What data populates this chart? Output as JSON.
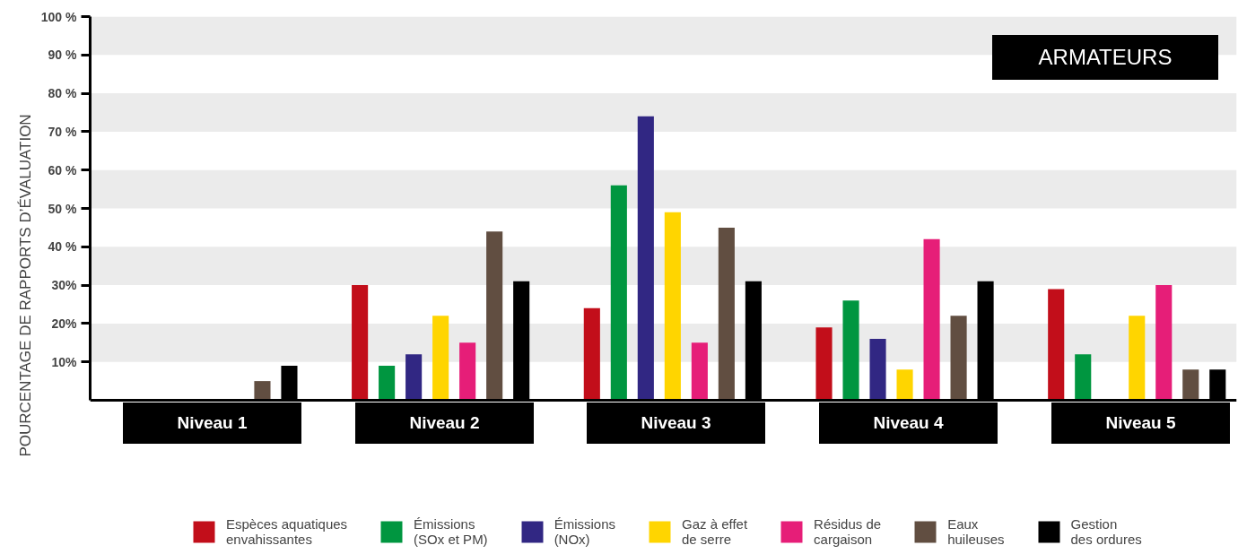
{
  "chart_data": {
    "type": "bar",
    "title": "ARMATEURS",
    "ylabel": "POURCENTAGE DE RAPPORTS D’ÉVALUATION",
    "categories": [
      "Niveau 1",
      "Niveau 2",
      "Niveau 3",
      "Niveau 4",
      "Niveau 5"
    ],
    "series": [
      {
        "name": "Espèces aquatiques envahissantes",
        "color": "#c20e1a",
        "values": [
          0,
          30,
          24,
          19,
          29
        ]
      },
      {
        "name": "Émissions (SOx et PM)",
        "color": "#009640",
        "values": [
          0,
          9,
          56,
          26,
          12
        ]
      },
      {
        "name": "Émissions (NOx)",
        "color": "#312783",
        "values": [
          0,
          12,
          74,
          16,
          0
        ]
      },
      {
        "name": "Gaz à effet de serre",
        "color": "#ffd500",
        "values": [
          0,
          22,
          49,
          8,
          22
        ]
      },
      {
        "name": "Résidus de cargaison",
        "color": "#e61e78",
        "values": [
          0,
          15,
          15,
          42,
          30
        ]
      },
      {
        "name": "Eaux huileuses",
        "color": "#614e41",
        "values": [
          5,
          44,
          45,
          22,
          8
        ]
      },
      {
        "name": "Gestion des ordures",
        "color": "#000000",
        "values": [
          9,
          31,
          31,
          31,
          8
        ]
      }
    ],
    "ylim": [
      0,
      100
    ],
    "yticks": [
      {
        "value": 10,
        "label": "10%"
      },
      {
        "value": 20,
        "label": "20%"
      },
      {
        "value": 30,
        "label": "30%"
      },
      {
        "value": 40,
        "label": "40 %"
      },
      {
        "value": 50,
        "label": "50 %"
      },
      {
        "value": 60,
        "label": "60 %"
      },
      {
        "value": 70,
        "label": "70 %"
      },
      {
        "value": 80,
        "label": "80 %"
      },
      {
        "value": 90,
        "label": "90 %"
      },
      {
        "value": 100,
        "label": "100 %"
      }
    ],
    "bands": [
      {
        "axis": "y",
        "from": 10,
        "to": 20,
        "color": "#ebebeb"
      },
      {
        "axis": "y",
        "from": 30,
        "to": 40,
        "color": "#ebebeb"
      },
      {
        "axis": "y",
        "from": 50,
        "to": 60,
        "color": "#ebebeb"
      },
      {
        "axis": "y",
        "from": 70,
        "to": 80,
        "color": "#ebebeb"
      },
      {
        "axis": "y",
        "from": 90,
        "to": 100,
        "color": "#ebebeb"
      }
    ],
    "legend": "bottom"
  }
}
